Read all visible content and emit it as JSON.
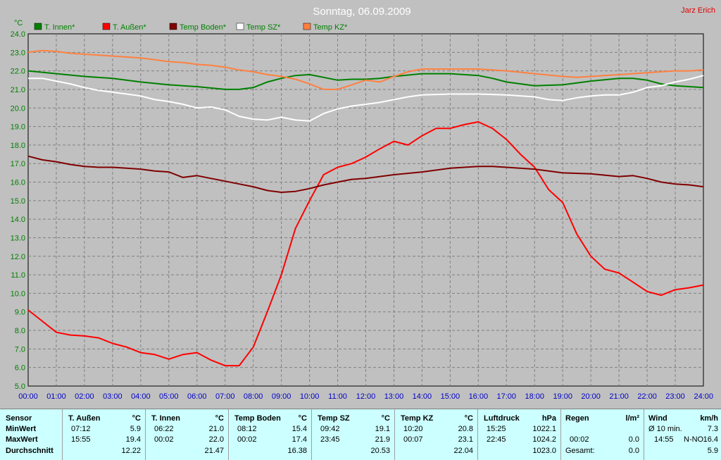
{
  "chart_data": {
    "type": "line",
    "title": "Sonntag, 06.09.2009",
    "author": "Jarz Erich",
    "yunit": "°C",
    "ylim": [
      5.0,
      24.0
    ],
    "yticks": [
      "5.0",
      "6.0",
      "7.0",
      "8.0",
      "9.0",
      "10.0",
      "11.0",
      "12.0",
      "13.0",
      "14.0",
      "15.0",
      "16.0",
      "17.0",
      "18.0",
      "19.0",
      "20.0",
      "21.0",
      "22.0",
      "23.0",
      "24.0"
    ],
    "xlim": [
      0,
      24
    ],
    "xticks": [
      "00:00",
      "01:00",
      "02:00",
      "03:00",
      "04:00",
      "05:00",
      "06:00",
      "07:00",
      "08:00",
      "09:00",
      "10:00",
      "11:00",
      "12:00",
      "13:00",
      "14:00",
      "15:00",
      "16:00",
      "17:00",
      "18:00",
      "19:00",
      "20:00",
      "21:00",
      "22:00",
      "23:00",
      "24:00"
    ],
    "grid": true,
    "legend_position": "top-left",
    "series": [
      {
        "name": "T. Innen*",
        "color": "#008000",
        "x": [
          0,
          1,
          2,
          3,
          4,
          5,
          6,
          7,
          7.5,
          8,
          8.5,
          9,
          9.5,
          10,
          10.5,
          11,
          11.5,
          12,
          12.5,
          13,
          14,
          15,
          16,
          16.5,
          17,
          18,
          19,
          20,
          21,
          21.5,
          22,
          22.5,
          23,
          23.5,
          24
        ],
        "y": [
          22.0,
          21.85,
          21.7,
          21.6,
          21.4,
          21.25,
          21.15,
          21.0,
          21.0,
          21.1,
          21.4,
          21.6,
          21.75,
          21.8,
          21.65,
          21.5,
          21.55,
          21.55,
          21.6,
          21.7,
          21.85,
          21.85,
          21.75,
          21.6,
          21.4,
          21.2,
          21.25,
          21.45,
          21.6,
          21.6,
          21.5,
          21.3,
          21.2,
          21.15,
          21.1
        ]
      },
      {
        "name": "T. Außen*",
        "color": "#ff0000",
        "x": [
          0,
          0.5,
          1,
          1.5,
          2,
          2.5,
          3,
          3.5,
          4,
          4.5,
          5,
          5.5,
          6,
          6.5,
          7,
          7.5,
          8,
          8.5,
          9,
          9.5,
          10,
          10.5,
          11,
          11.5,
          12,
          12.5,
          13,
          13.5,
          14,
          14.5,
          15,
          15.5,
          16,
          16.5,
          17,
          17.5,
          18,
          18.5,
          19,
          19.5,
          20,
          20.5,
          21,
          21.5,
          22,
          22.5,
          23,
          23.5,
          24
        ],
        "y": [
          9.1,
          8.5,
          7.9,
          7.75,
          7.7,
          7.6,
          7.3,
          7.1,
          6.8,
          6.7,
          6.45,
          6.7,
          6.8,
          6.4,
          6.1,
          6.1,
          7.1,
          9.0,
          11.0,
          13.5,
          15.0,
          16.4,
          16.8,
          17.0,
          17.35,
          17.8,
          18.2,
          18.0,
          18.5,
          18.9,
          18.9,
          19.1,
          19.25,
          18.9,
          18.3,
          17.5,
          16.8,
          15.6,
          14.9,
          13.2,
          12.0,
          11.3,
          11.1,
          10.6,
          10.1,
          9.9,
          10.2,
          10.3,
          10.45
        ]
      },
      {
        "name": "Temp Boden*",
        "color": "#800000",
        "x": [
          0,
          0.5,
          1,
          1.5,
          2,
          2.5,
          3,
          3.5,
          4,
          4.5,
          5,
          5.5,
          6,
          6.5,
          7,
          7.5,
          8,
          8.5,
          9,
          9.5,
          10,
          10.5,
          11,
          11.5,
          12,
          12.5,
          13,
          14,
          15,
          16,
          16.5,
          17,
          18,
          19,
          20,
          21,
          21.5,
          22,
          22.5,
          23,
          23.5,
          24
        ],
        "y": [
          17.4,
          17.2,
          17.1,
          16.95,
          16.85,
          16.8,
          16.8,
          16.75,
          16.7,
          16.6,
          16.55,
          16.25,
          16.35,
          16.2,
          16.05,
          15.9,
          15.75,
          15.55,
          15.45,
          15.5,
          15.65,
          15.85,
          16.0,
          16.15,
          16.2,
          16.3,
          16.4,
          16.55,
          16.75,
          16.85,
          16.85,
          16.8,
          16.7,
          16.5,
          16.45,
          16.3,
          16.35,
          16.2,
          16.0,
          15.9,
          15.85,
          15.75
        ]
      },
      {
        "name": "Temp SZ*",
        "color": "#ffffff",
        "x": [
          0,
          0.5,
          1,
          1.5,
          2,
          2.5,
          3,
          3.5,
          4,
          4.5,
          5,
          5.5,
          6,
          6.5,
          7,
          7.5,
          8,
          8.5,
          9,
          9.5,
          10,
          10.5,
          11,
          11.5,
          12,
          12.5,
          13,
          13.5,
          14,
          15,
          16,
          17,
          18,
          18.5,
          19,
          19.5,
          20,
          20.5,
          21,
          21.5,
          22,
          22.5,
          23,
          23.5,
          24
        ],
        "y": [
          21.6,
          21.6,
          21.45,
          21.3,
          21.1,
          20.95,
          20.85,
          20.75,
          20.65,
          20.45,
          20.35,
          20.2,
          20.0,
          20.05,
          19.9,
          19.55,
          19.4,
          19.35,
          19.5,
          19.35,
          19.3,
          19.7,
          19.95,
          20.1,
          20.2,
          20.3,
          20.45,
          20.6,
          20.7,
          20.75,
          20.75,
          20.7,
          20.6,
          20.45,
          20.4,
          20.55,
          20.65,
          20.7,
          20.7,
          20.85,
          21.1,
          21.2,
          21.4,
          21.55,
          21.75
        ]
      },
      {
        "name": "Temp KZ*",
        "color": "#ff8040",
        "x": [
          0,
          0.5,
          1,
          1.5,
          2,
          2.5,
          3,
          3.5,
          4,
          4.5,
          5,
          5.5,
          6,
          6.5,
          7,
          7.5,
          8,
          8.5,
          9,
          9.5,
          10,
          10.5,
          11,
          11.5,
          12,
          12.5,
          13,
          13.5,
          14,
          15,
          16,
          17,
          18,
          19,
          19.5,
          20,
          21,
          22,
          22.5,
          23,
          23.5,
          24
        ],
        "y": [
          23.0,
          23.1,
          23.05,
          22.95,
          22.9,
          22.85,
          22.8,
          22.75,
          22.7,
          22.6,
          22.5,
          22.45,
          22.35,
          22.3,
          22.2,
          22.05,
          21.95,
          21.8,
          21.7,
          21.55,
          21.3,
          21.0,
          21.0,
          21.25,
          21.5,
          21.4,
          21.7,
          21.95,
          22.1,
          22.1,
          22.1,
          22.0,
          21.85,
          21.7,
          21.65,
          21.7,
          21.8,
          21.9,
          21.95,
          22.0,
          22.0,
          22.05
        ]
      }
    ]
  },
  "stats": {
    "row_labels": [
      "Sensor",
      "MinWert",
      "MaxWert",
      "Durchschnitt"
    ],
    "columns": [
      {
        "name": "T. Außen",
        "unit": "°C",
        "min_time": "07:12",
        "min_val": "5.9",
        "max_time": "15:55",
        "max_val": "19.4",
        "avg": "12.22"
      },
      {
        "name": "T. Innen",
        "unit": "°C",
        "min_time": "06:22",
        "min_val": "21.0",
        "max_time": "00:02",
        "max_val": "22.0",
        "avg": "21.47"
      },
      {
        "name": "Temp Boden",
        "unit": "°C",
        "min_time": "08:12",
        "min_val": "15.4",
        "max_time": "00:02",
        "max_val": "17.4",
        "avg": "16.38"
      },
      {
        "name": "Temp SZ",
        "unit": "°C",
        "min_time": "09:42",
        "min_val": "19.1",
        "max_time": "23:45",
        "max_val": "21.9",
        "avg": "20.53"
      },
      {
        "name": "Temp KZ",
        "unit": "°C",
        "min_time": "10:20",
        "min_val": "20.8",
        "max_time": "00:07",
        "max_val": "23.1",
        "avg": "22.04"
      },
      {
        "name": "Luftdruck",
        "unit": "hPa",
        "min_time": "15:25",
        "min_val": "1022.1",
        "max_time": "22:45",
        "max_val": "1024.2",
        "avg": "1023.0"
      }
    ],
    "regen": {
      "name": "Regen",
      "unit": "l/m²",
      "r2_time": "00:02",
      "r2_val": "0.0",
      "r3_label": "Gesamt:",
      "r3_val": "0.0"
    },
    "wind": {
      "name": "Wind",
      "unit": "km/h",
      "r1_label": "Ø 10 min.",
      "r1_val": "7.3",
      "r2_time": "14:55",
      "r2_dir": "N-NO",
      "r2_val": "16.4",
      "r3_val": "5.9"
    }
  }
}
